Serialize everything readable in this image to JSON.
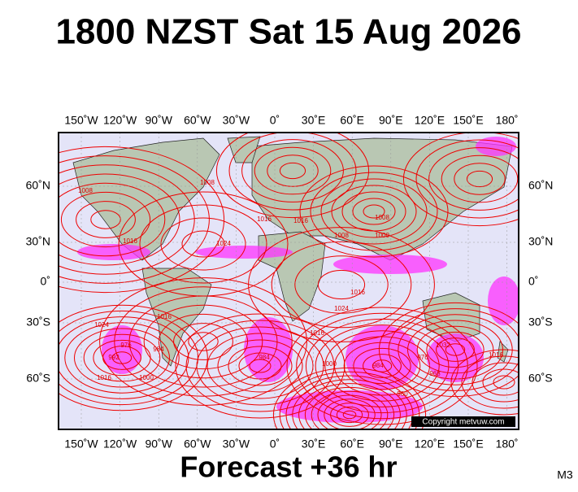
{
  "header": {
    "title": "1800 NZST Sat 15 Aug 2026"
  },
  "map": {
    "lon_labels": [
      "150˚W",
      "120˚W",
      "90˚W",
      "60˚W",
      "30˚W",
      "0˚",
      "30˚E",
      "60˚E",
      "90˚E",
      "120˚E",
      "150˚E",
      "180˚"
    ],
    "lat_labels": [
      "60˚N",
      "30˚N",
      "0˚",
      "30˚S",
      "60˚S"
    ],
    "isobar_labels": [
      "1008",
      "1016",
      "1024",
      "1016",
      "1008",
      "1016",
      "1024",
      "1016",
      "1008",
      "1000",
      "1016",
      "1024",
      "1016",
      "1000",
      "992",
      "984",
      "976",
      "1016",
      "984",
      "1032",
      "1016",
      "984",
      "976",
      "968",
      "1000",
      "1008",
      "960"
    ],
    "copyright": "Copyright metvuw.com"
  },
  "footer": {
    "subtitle": "Forecast +36 hr",
    "code": "M3"
  }
}
